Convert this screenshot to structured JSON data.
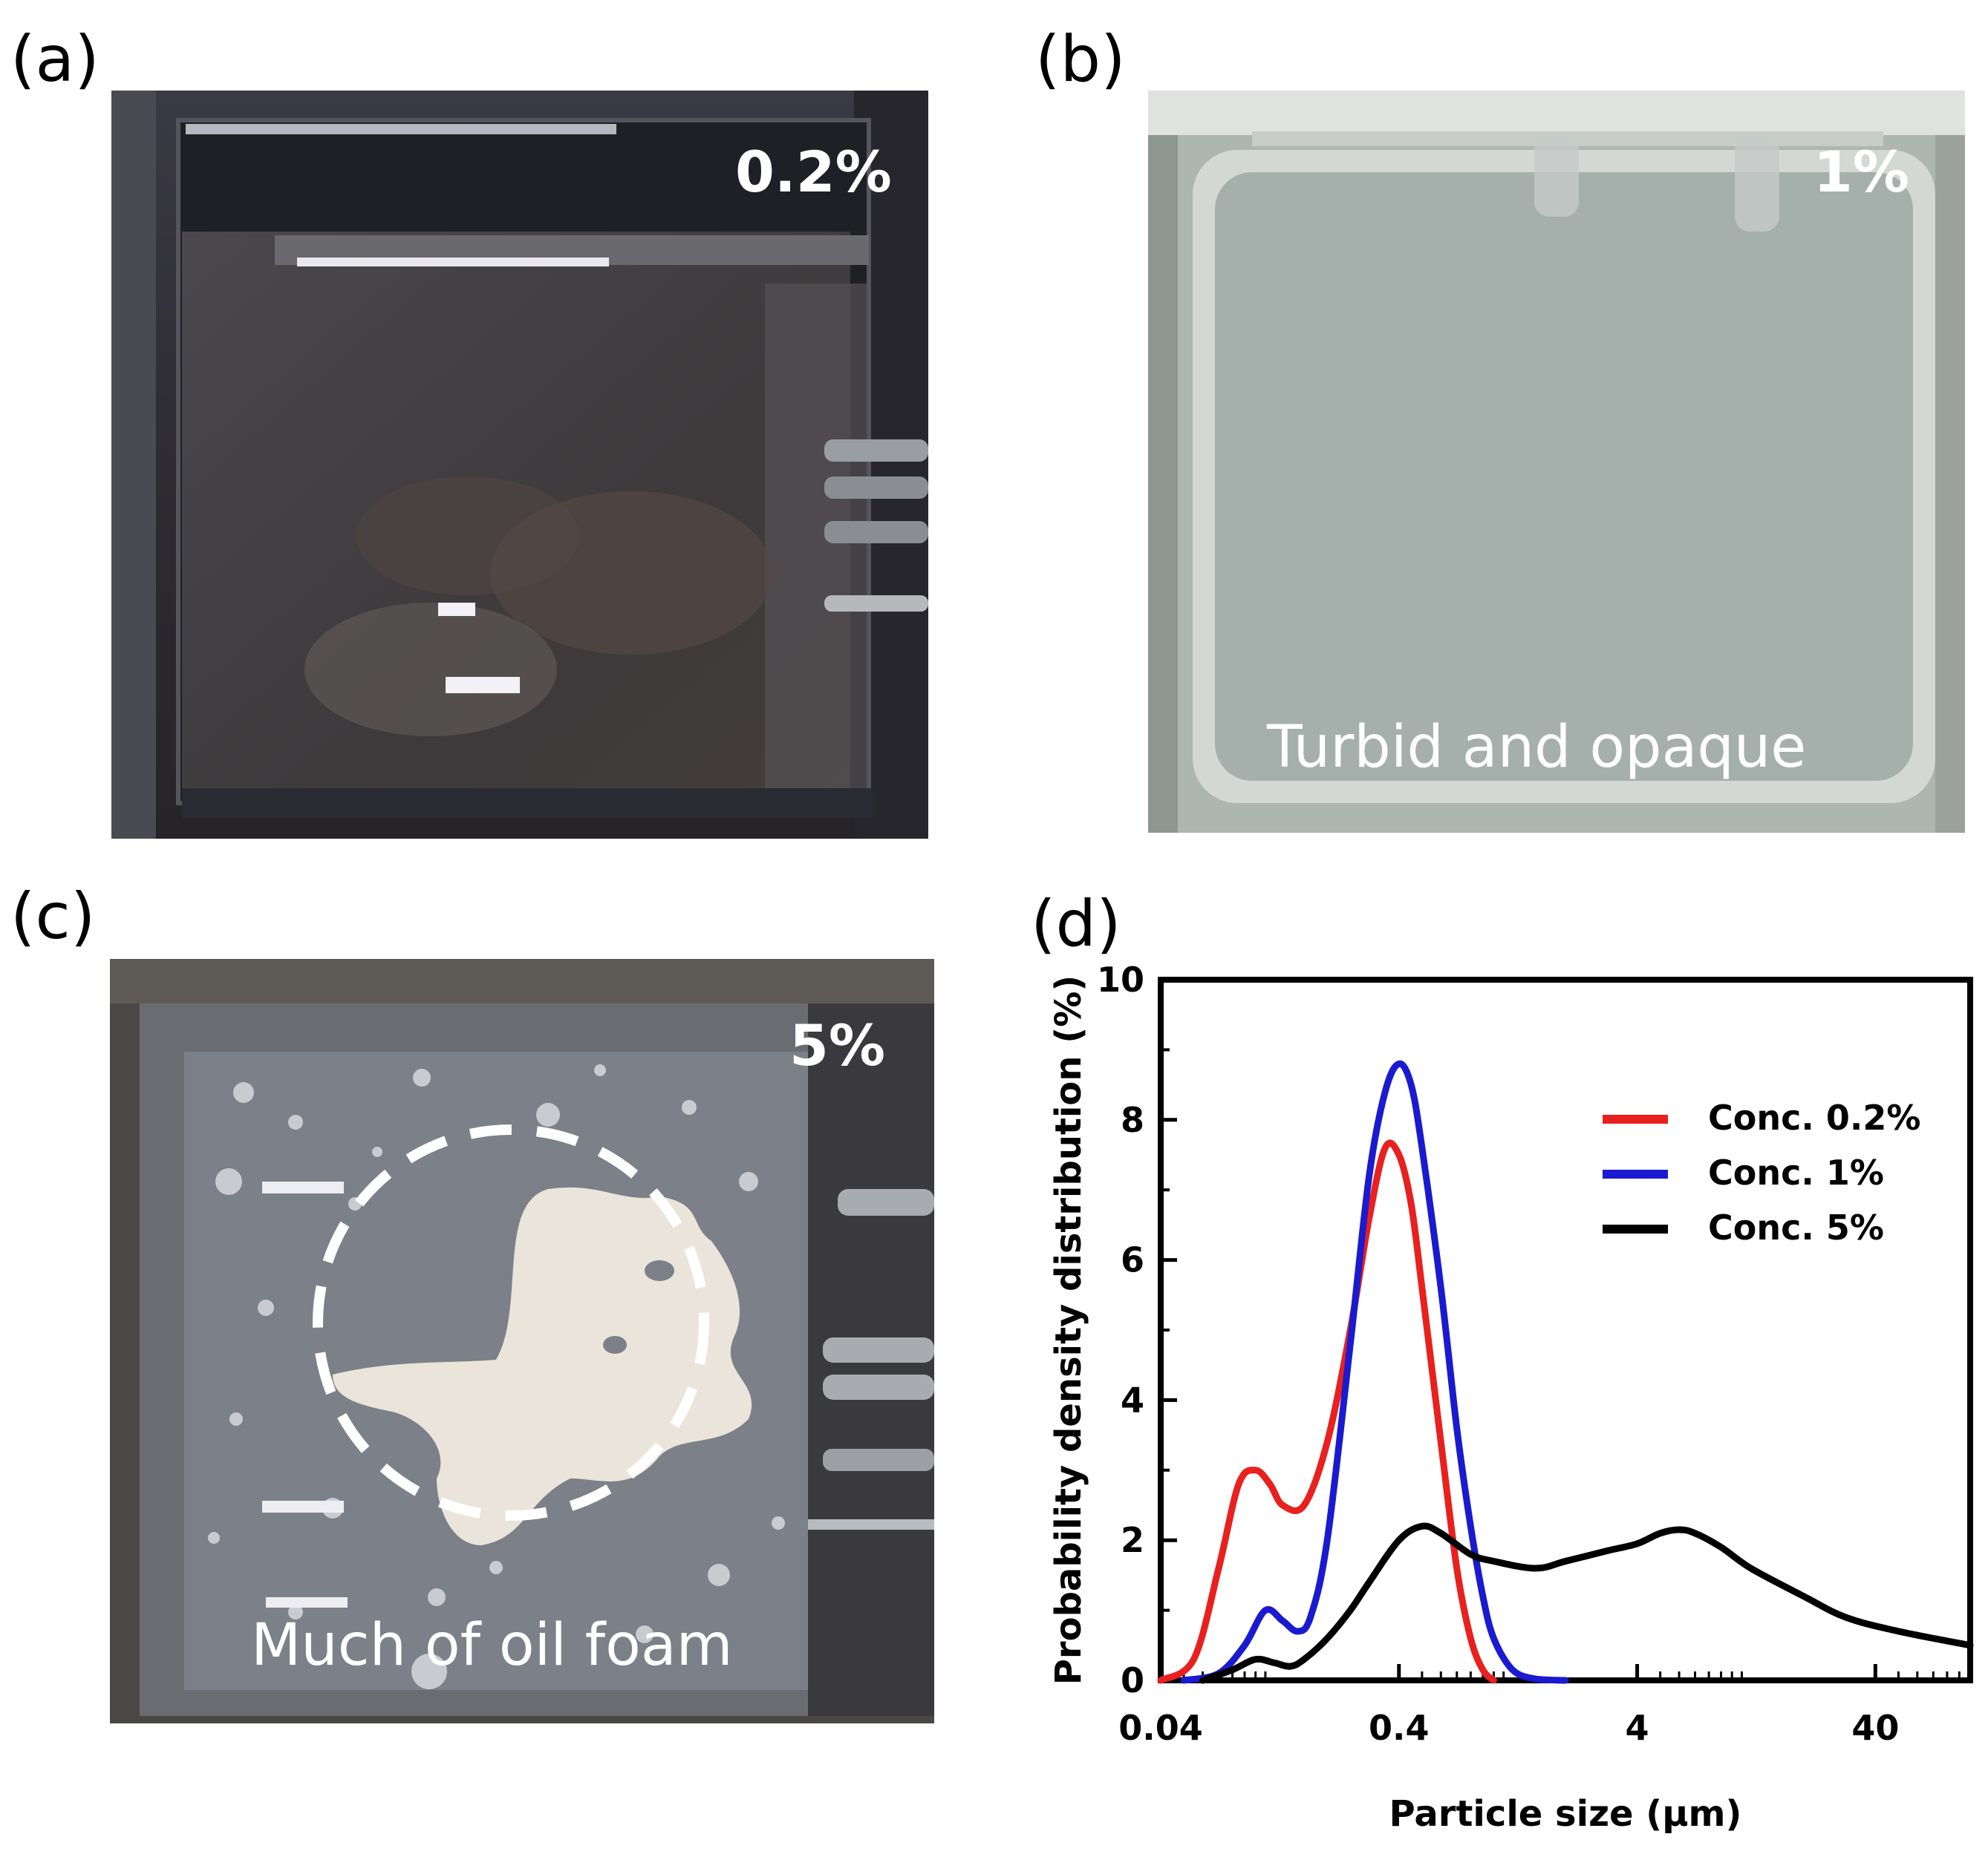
{
  "panels": {
    "a": {
      "letter": "(a)",
      "label": "0.2%"
    },
    "b": {
      "letter": "(b)",
      "label": "1%",
      "caption": "Turbid and opaque"
    },
    "c": {
      "letter": "(c)",
      "label": "5%",
      "caption": "Much of oil foam"
    },
    "d": {
      "letter": "(d)"
    }
  },
  "chart_data": {
    "type": "line",
    "xscale": "log",
    "xlabel": "Particle size (μm)",
    "ylabel": "Probability density distribution (%)",
    "xlim": [
      0.04,
      100
    ],
    "ylim": [
      0,
      10
    ],
    "xticks": [
      0.04,
      0.4,
      4,
      40
    ],
    "xtick_labels": [
      "0.04",
      "0.4",
      "4",
      "40"
    ],
    "yticks": [
      0,
      2,
      4,
      6,
      8,
      10
    ],
    "ytick_labels": [
      "0",
      "2",
      "4",
      "6",
      "8",
      "10"
    ],
    "grid": false,
    "legend_position": "top-right",
    "series": [
      {
        "name": "Conc. 0.2%",
        "color": "#e8201e",
        "x": [
          0.04,
          0.055,
          0.07,
          0.085,
          0.1,
          0.115,
          0.13,
          0.16,
          0.2,
          0.25,
          0.3,
          0.35,
          0.4,
          0.45,
          0.5,
          0.6,
          0.7,
          0.8,
          0.9,
          1.0
        ],
        "y": [
          0.0,
          0.3,
          1.6,
          2.8,
          3.0,
          2.8,
          2.5,
          2.5,
          3.4,
          5.0,
          6.6,
          7.6,
          7.5,
          6.8,
          5.6,
          3.4,
          1.6,
          0.6,
          0.15,
          0.0
        ]
      },
      {
        "name": "Conc. 1%",
        "color": "#1a1ad0",
        "x": [
          0.05,
          0.07,
          0.09,
          0.11,
          0.13,
          0.15,
          0.17,
          0.2,
          0.25,
          0.3,
          0.35,
          0.4,
          0.45,
          0.5,
          0.6,
          0.7,
          0.8,
          0.9,
          1.0,
          1.2,
          1.5,
          2.0
        ],
        "y": [
          0.0,
          0.1,
          0.5,
          1.0,
          0.85,
          0.7,
          0.9,
          2.0,
          4.8,
          7.2,
          8.4,
          8.8,
          8.5,
          7.6,
          5.6,
          3.6,
          2.2,
          1.2,
          0.6,
          0.15,
          0.02,
          0.0
        ]
      },
      {
        "name": "Conc. 5%",
        "color": "#000000",
        "x": [
          0.06,
          0.08,
          0.1,
          0.12,
          0.14,
          0.16,
          0.2,
          0.25,
          0.3,
          0.4,
          0.5,
          0.6,
          0.8,
          1.0,
          1.5,
          2.0,
          3.0,
          4.0,
          5.0,
          6.0,
          7.0,
          9.0,
          12.0,
          20.0,
          30.0,
          50.0,
          100.0
        ],
        "y": [
          0.0,
          0.15,
          0.3,
          0.25,
          0.2,
          0.3,
          0.6,
          1.0,
          1.4,
          2.0,
          2.2,
          2.1,
          1.8,
          1.7,
          1.6,
          1.7,
          1.85,
          1.95,
          2.1,
          2.15,
          2.1,
          1.9,
          1.6,
          1.2,
          0.9,
          0.7,
          0.5
        ]
      }
    ]
  }
}
